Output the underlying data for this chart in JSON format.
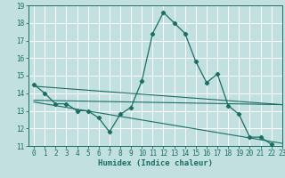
{
  "xlabel": "Humidex (Indice chaleur)",
  "bg_color": "#c2e0e0",
  "grid_color": "#ffffff",
  "line_color": "#1a6e64",
  "x_values": [
    0,
    1,
    2,
    3,
    4,
    5,
    6,
    7,
    8,
    9,
    10,
    11,
    12,
    13,
    14,
    15,
    16,
    17,
    18,
    19,
    20,
    21,
    22,
    23
  ],
  "main_line": [
    14.5,
    14.0,
    13.4,
    13.4,
    13.0,
    13.0,
    12.6,
    11.8,
    12.8,
    13.2,
    14.7,
    17.4,
    18.6,
    18.0,
    17.4,
    15.8,
    14.6,
    15.1,
    13.3,
    12.8,
    11.5,
    11.5,
    11.1,
    null
  ],
  "trend_lines": [
    {
      "x0": 0,
      "y0": 14.4,
      "x1": 23,
      "y1": 13.35
    },
    {
      "x0": 0,
      "y0": 13.6,
      "x1": 23,
      "y1": 13.35
    },
    {
      "x0": 0,
      "y0": 13.5,
      "x1": 23,
      "y1": 11.15
    }
  ],
  "ylim": [
    11,
    19
  ],
  "xlim": [
    -0.5,
    23
  ],
  "yticks": [
    11,
    12,
    13,
    14,
    15,
    16,
    17,
    18,
    19
  ],
  "xticks": [
    0,
    1,
    2,
    3,
    4,
    5,
    6,
    7,
    8,
    9,
    10,
    11,
    12,
    13,
    14,
    15,
    16,
    17,
    18,
    19,
    20,
    21,
    22,
    23
  ],
  "tick_fontsize": 5.5,
  "xlabel_fontsize": 6.5
}
